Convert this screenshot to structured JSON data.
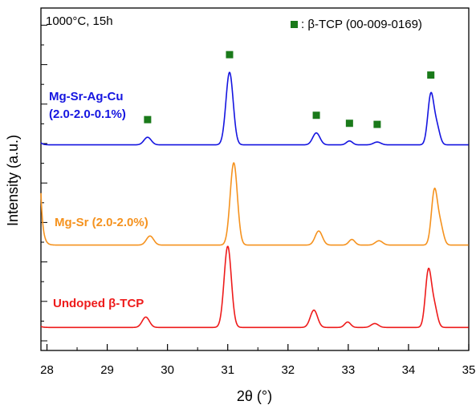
{
  "chart_data": {
    "type": "line",
    "title": "",
    "annotation_top_left": "1000°C, 15h",
    "legend": {
      "marker_label": ": β-TCP (00-009-0169)",
      "marker_color": "#1a7a1a",
      "placement": "top-right"
    },
    "xlabel": "2θ (°)",
    "ylabel": "Intensity (a.u.)",
    "xlim": [
      27.9,
      35
    ],
    "x_ticks": [
      "28",
      "29",
      "30",
      "31",
      "32",
      "33",
      "34",
      "35"
    ],
    "y_axis_numbers": "none",
    "series": [
      {
        "name": "Mg-Sr-Ag-Cu",
        "label_lines": [
          "Mg-Sr-Ag-Cu",
          "(2.0-2.0-0.1%)"
        ],
        "color": "#1515e0",
        "baseline": 0.2,
        "edge_rise": 0.1,
        "peaks": [
          {
            "x": 29.67,
            "h": 0.35,
            "w": 0.06
          },
          {
            "x": 31.03,
            "h": 3.35,
            "w": 0.06
          },
          {
            "x": 32.47,
            "h": 0.55,
            "w": 0.06
          },
          {
            "x": 33.02,
            "h": 0.18,
            "w": 0.05
          },
          {
            "x": 33.48,
            "h": 0.13,
            "w": 0.06
          },
          {
            "x": 34.37,
            "h": 2.3,
            "w": 0.05
          },
          {
            "x": 34.47,
            "h": 0.8,
            "w": 0.05
          }
        ],
        "reference_markers": [
          29.67,
          31.03,
          32.47,
          33.02,
          33.48,
          34.37
        ]
      },
      {
        "name": "Mg-Sr",
        "label_lines": [
          "Mg-Sr (2.0-2.0%)"
        ],
        "color": "#f5921e",
        "baseline": 0.2,
        "edge_rise": 2.4,
        "peaks": [
          {
            "x": 29.71,
            "h": 0.42,
            "w": 0.06
          },
          {
            "x": 31.1,
            "h": 3.8,
            "w": 0.06
          },
          {
            "x": 32.51,
            "h": 0.65,
            "w": 0.06
          },
          {
            "x": 33.06,
            "h": 0.26,
            "w": 0.05
          },
          {
            "x": 33.51,
            "h": 0.2,
            "w": 0.06
          },
          {
            "x": 34.43,
            "h": 2.5,
            "w": 0.05
          },
          {
            "x": 34.53,
            "h": 0.85,
            "w": 0.05
          }
        ]
      },
      {
        "name": "Undoped β-TCP",
        "label_lines": [
          "Undoped β-TCP"
        ],
        "color": "#ee1b1b",
        "baseline": 0.1,
        "edge_rise": 0.05,
        "peaks": [
          {
            "x": 29.64,
            "h": 0.48,
            "w": 0.06
          },
          {
            "x": 31.0,
            "h": 3.75,
            "w": 0.06
          },
          {
            "x": 32.43,
            "h": 0.8,
            "w": 0.06
          },
          {
            "x": 32.99,
            "h": 0.25,
            "w": 0.05
          },
          {
            "x": 33.44,
            "h": 0.18,
            "w": 0.06
          },
          {
            "x": 34.33,
            "h": 2.6,
            "w": 0.05
          },
          {
            "x": 34.43,
            "h": 0.9,
            "w": 0.05
          }
        ]
      }
    ]
  }
}
